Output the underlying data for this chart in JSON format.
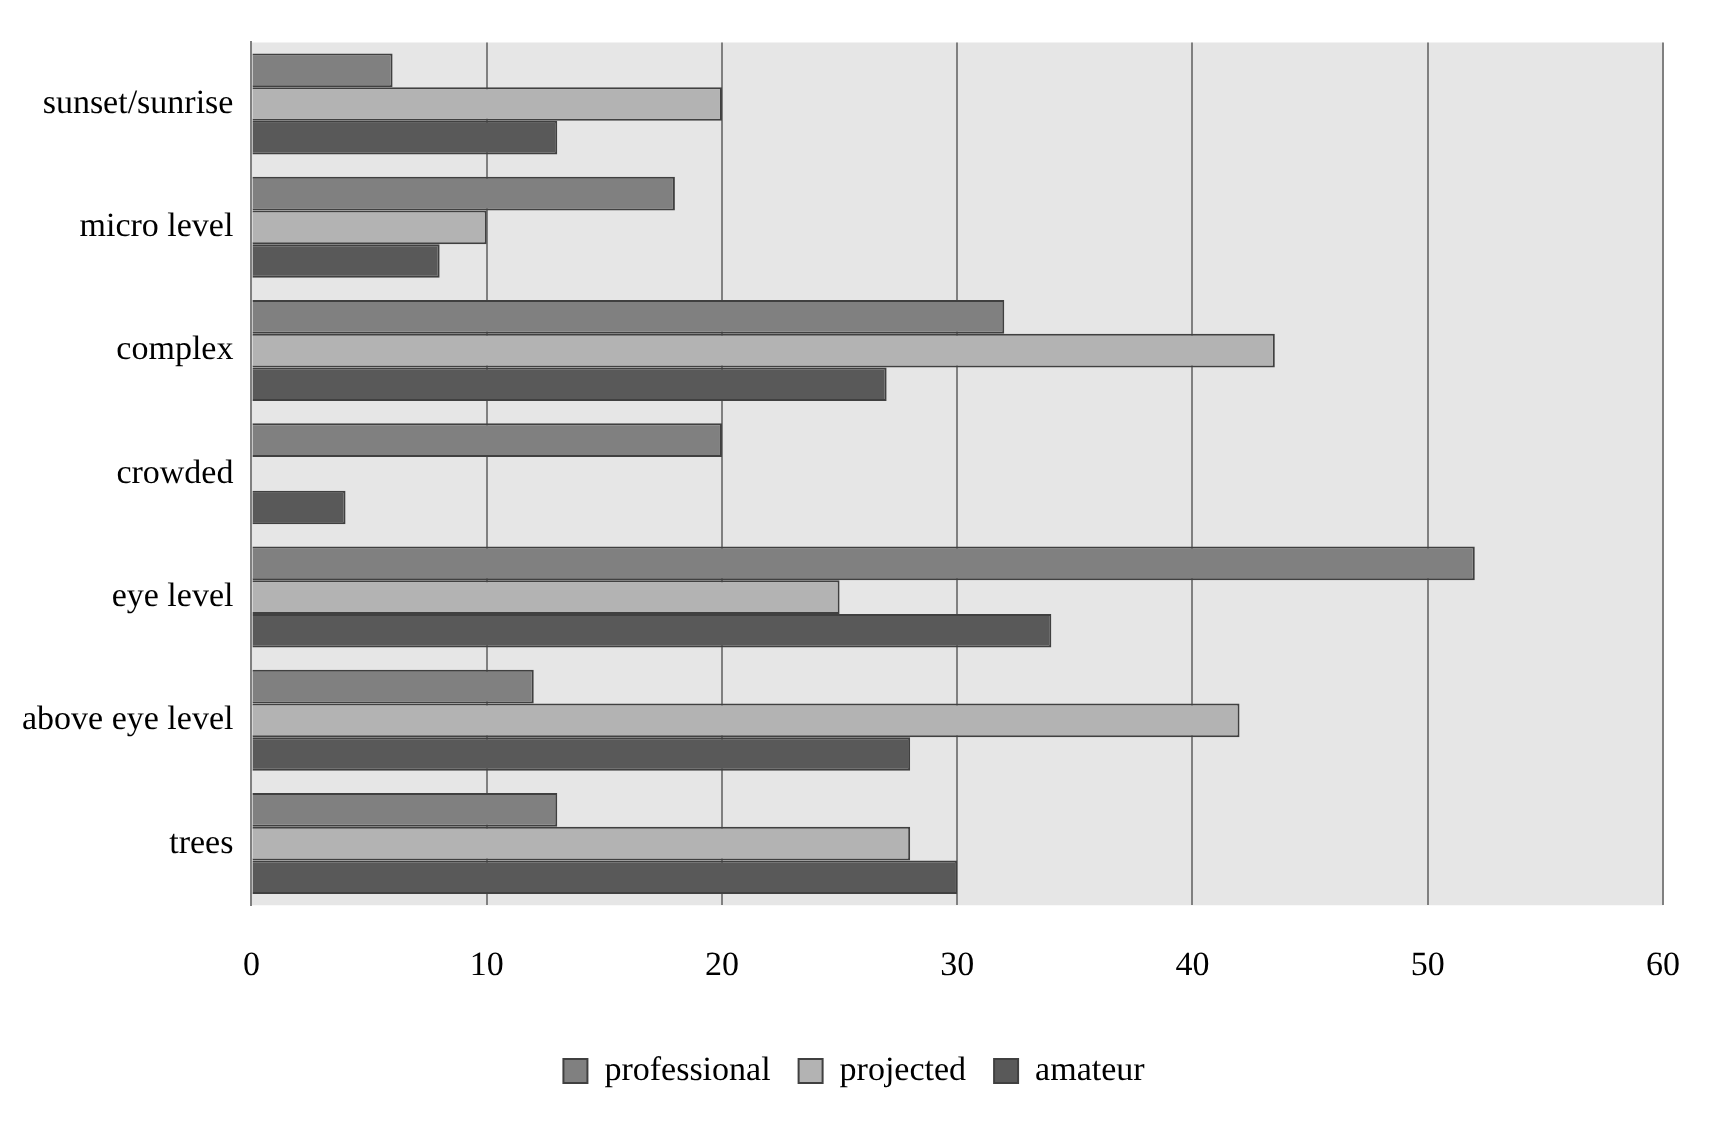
{
  "chart_data": {
    "type": "bar",
    "orientation": "horizontal",
    "categories": [
      "sunset/sunrise",
      "micro level",
      "complex",
      "crowded",
      "eye level",
      "above eye level",
      "trees"
    ],
    "series": [
      {
        "name": "professional",
        "color": "#808080",
        "values": [
          6,
          18,
          32,
          20,
          52,
          12,
          13
        ]
      },
      {
        "name": "projected",
        "color": "#b3b3b3",
        "values": [
          20,
          10,
          43.5,
          0,
          25,
          42,
          28
        ]
      },
      {
        "name": "amateur",
        "color": "#595959",
        "values": [
          13,
          8,
          27,
          4,
          34,
          28,
          30
        ]
      }
    ],
    "xlim": [
      0,
      60
    ],
    "xticks": [
      0,
      10,
      20,
      30,
      40,
      50,
      60
    ],
    "grid": "x",
    "legend": "bottom"
  }
}
